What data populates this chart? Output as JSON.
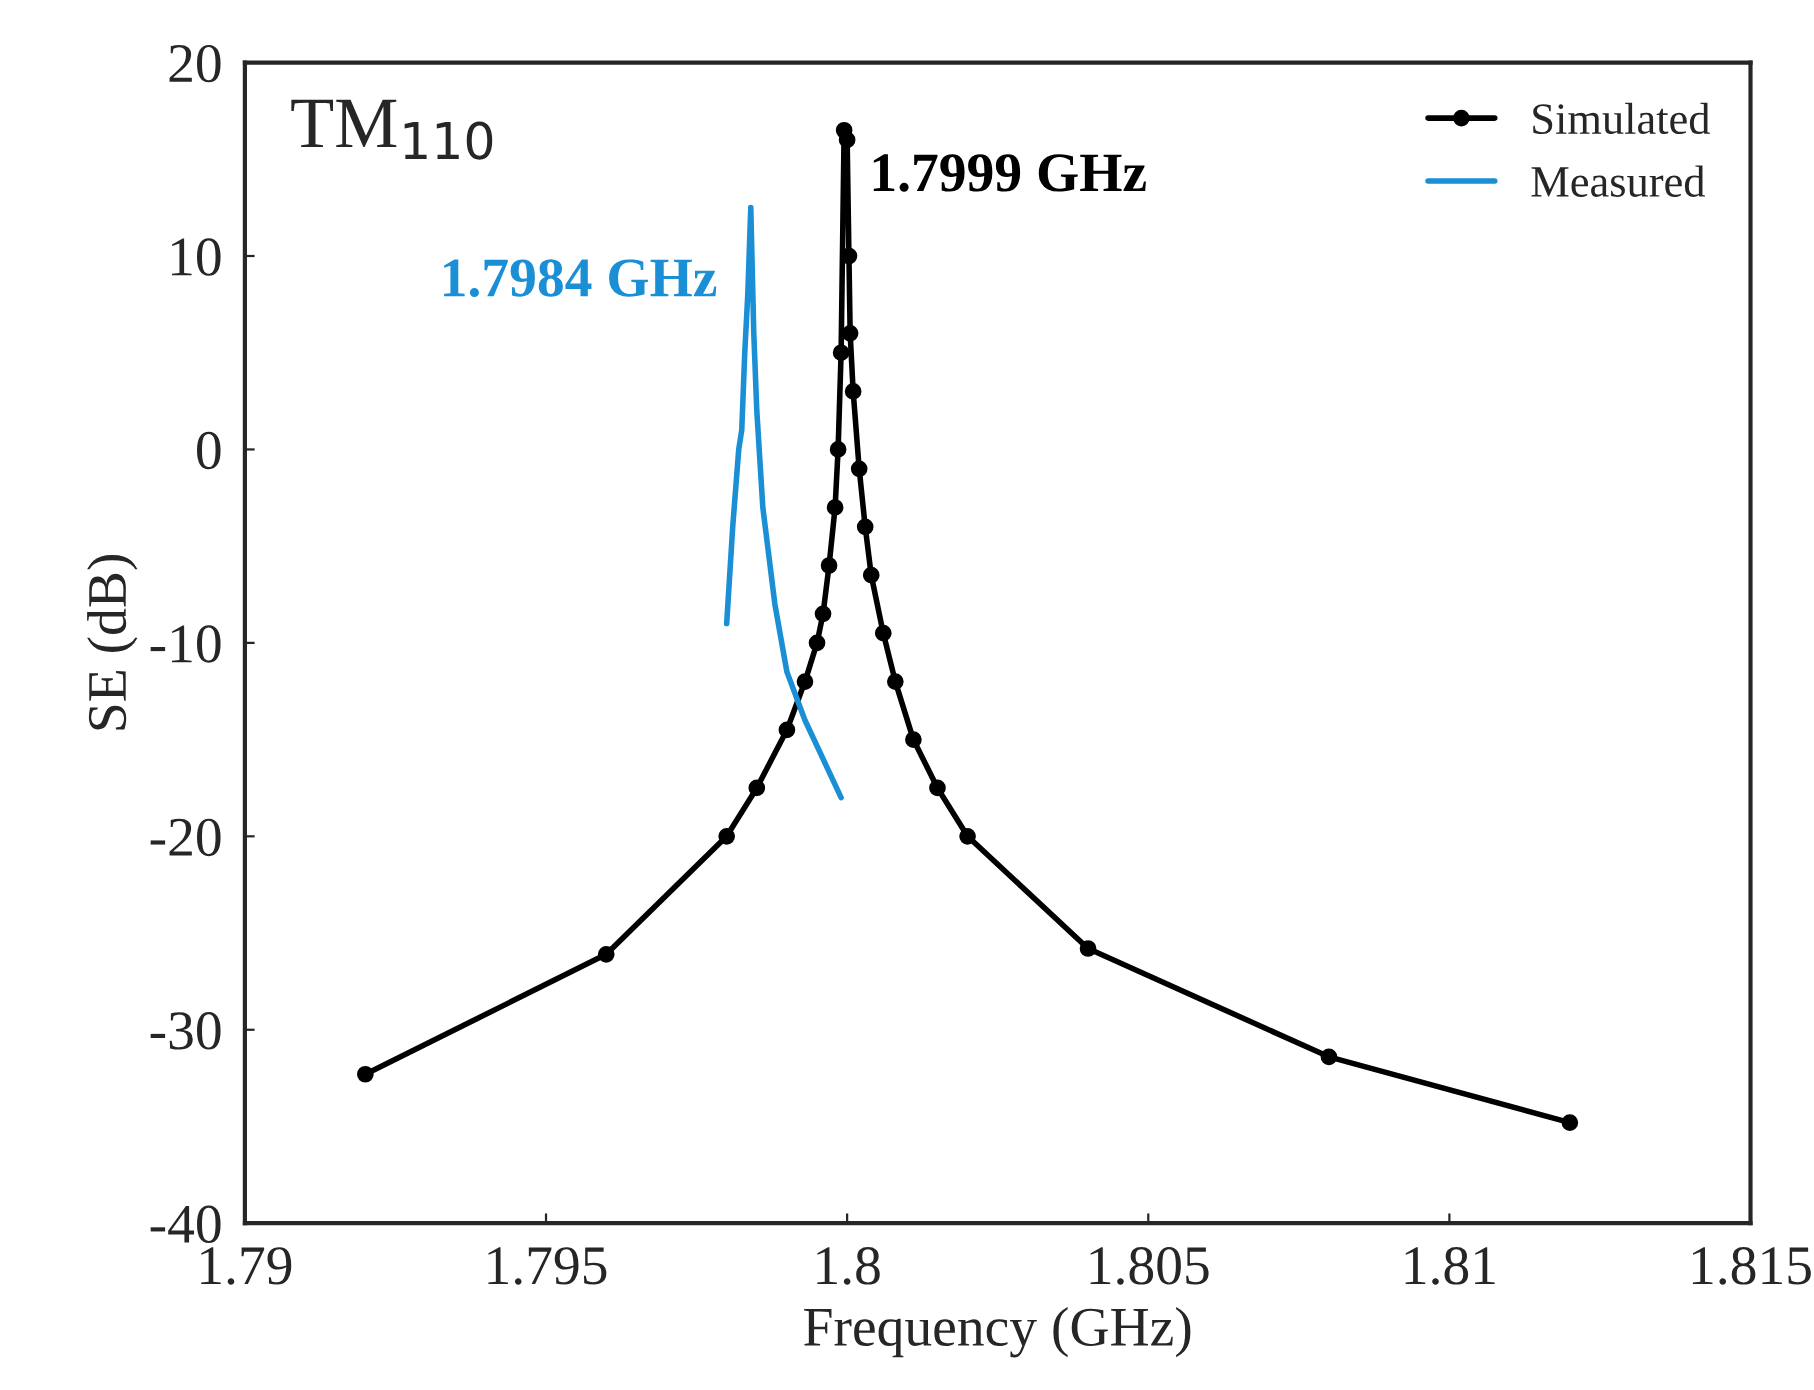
{
  "chart_data": {
    "type": "line",
    "xlabel": "Frequency (GHz)",
    "ylabel": "SE (dB)",
    "xlim": [
      1.79,
      1.815
    ],
    "xticks": [
      1.79,
      1.795,
      {
        "value": 1.8,
        "label": "1.8"
      },
      1.805,
      1.81,
      1.815
    ],
    "ylim": [
      -40,
      20
    ],
    "yticks": [
      -40,
      -30,
      -20,
      -10,
      0,
      10,
      20
    ],
    "grid": false,
    "legend": "top right",
    "series": [
      {
        "name": "Simulated",
        "color": "#000000",
        "marker": "circle",
        "x": [
          1.792,
          1.796,
          1.798,
          1.7985,
          1.799,
          1.7993,
          1.7995,
          1.7996,
          1.7997,
          1.7998,
          1.79985,
          1.7999,
          1.79995,
          1.8,
          1.80003,
          1.80005,
          1.8001,
          1.8002,
          1.8003,
          1.8004,
          1.8006,
          1.8008,
          1.8011,
          1.8015,
          1.802,
          1.804,
          1.808,
          1.812
        ],
        "values": [
          -32.3,
          -26.1,
          -20,
          -17.5,
          -14.5,
          -12,
          -10,
          -8.5,
          -6,
          -3,
          0,
          5,
          16.5,
          16,
          10,
          6,
          3,
          -1,
          -4,
          -6.5,
          -9.5,
          -12,
          -15,
          -17.5,
          -20,
          -25.8,
          -31.4,
          -34.8
        ]
      },
      {
        "name": "Measured",
        "color": "#1a8fd6",
        "marker": "none",
        "x": [
          1.798,
          1.7981,
          1.7982,
          1.79825,
          1.7983,
          1.79835,
          1.7984,
          1.79845,
          1.7985,
          1.7986,
          1.7988,
          1.799,
          1.7993,
          1.7996,
          1.7999
        ],
        "values": [
          -9,
          -4,
          0,
          1,
          5,
          8,
          12.5,
          6,
          2,
          -3,
          -8,
          -11.5,
          -14,
          -16,
          -18
        ]
      }
    ],
    "annotations": [
      {
        "text": "1.7999 GHz",
        "x": 1.8,
        "y": 16.5
      },
      {
        "text": "1.7984 GHz",
        "x": 1.7984,
        "y": 12.5
      },
      "TM$_{110}$"
    ]
  }
}
